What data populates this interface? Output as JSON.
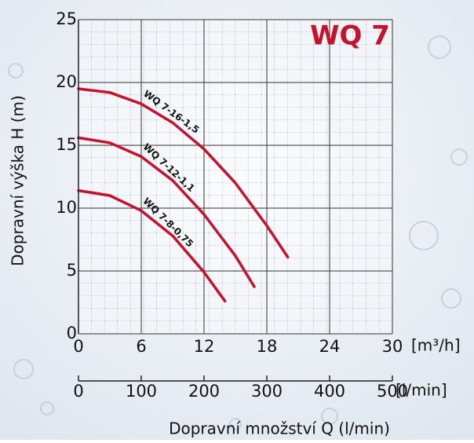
{
  "chart_data": {
    "type": "line",
    "title": "WQ 7",
    "x_label": "Dopravní množství Q (l/min)",
    "y_label": "Dopravní výška H (m)",
    "x_unit": "[m³/h]",
    "x2_unit": "[l/min]",
    "xlim": [
      0,
      30
    ],
    "xticks": [
      0,
      6,
      12,
      18,
      24,
      30
    ],
    "x2lim": [
      0,
      500
    ],
    "x2ticks": [
      0,
      100,
      200,
      300,
      400,
      500
    ],
    "ylim": [
      0,
      25
    ],
    "yticks": [
      0,
      5,
      10,
      15,
      20,
      25
    ],
    "grid": true,
    "series": [
      {
        "name": "WQ 7-16-1,5",
        "color": "#c4122f",
        "x": [
          0,
          3,
          6,
          9,
          12,
          15,
          18,
          20
        ],
        "values": [
          19.5,
          19.2,
          18.3,
          16.8,
          14.7,
          12.0,
          8.6,
          6.1
        ]
      },
      {
        "name": "WQ 7-12-1,1",
        "color": "#c4122f",
        "x": [
          0,
          3,
          6,
          9,
          12,
          15,
          16.8
        ],
        "values": [
          15.6,
          15.2,
          14.1,
          12.2,
          9.5,
          6.2,
          3.75
        ]
      },
      {
        "name": "WQ 7-8-0,75",
        "color": "#c4122f",
        "x": [
          0,
          3,
          6,
          9,
          12,
          14
        ],
        "values": [
          11.4,
          11.0,
          9.8,
          7.8,
          4.9,
          2.6
        ]
      }
    ]
  }
}
